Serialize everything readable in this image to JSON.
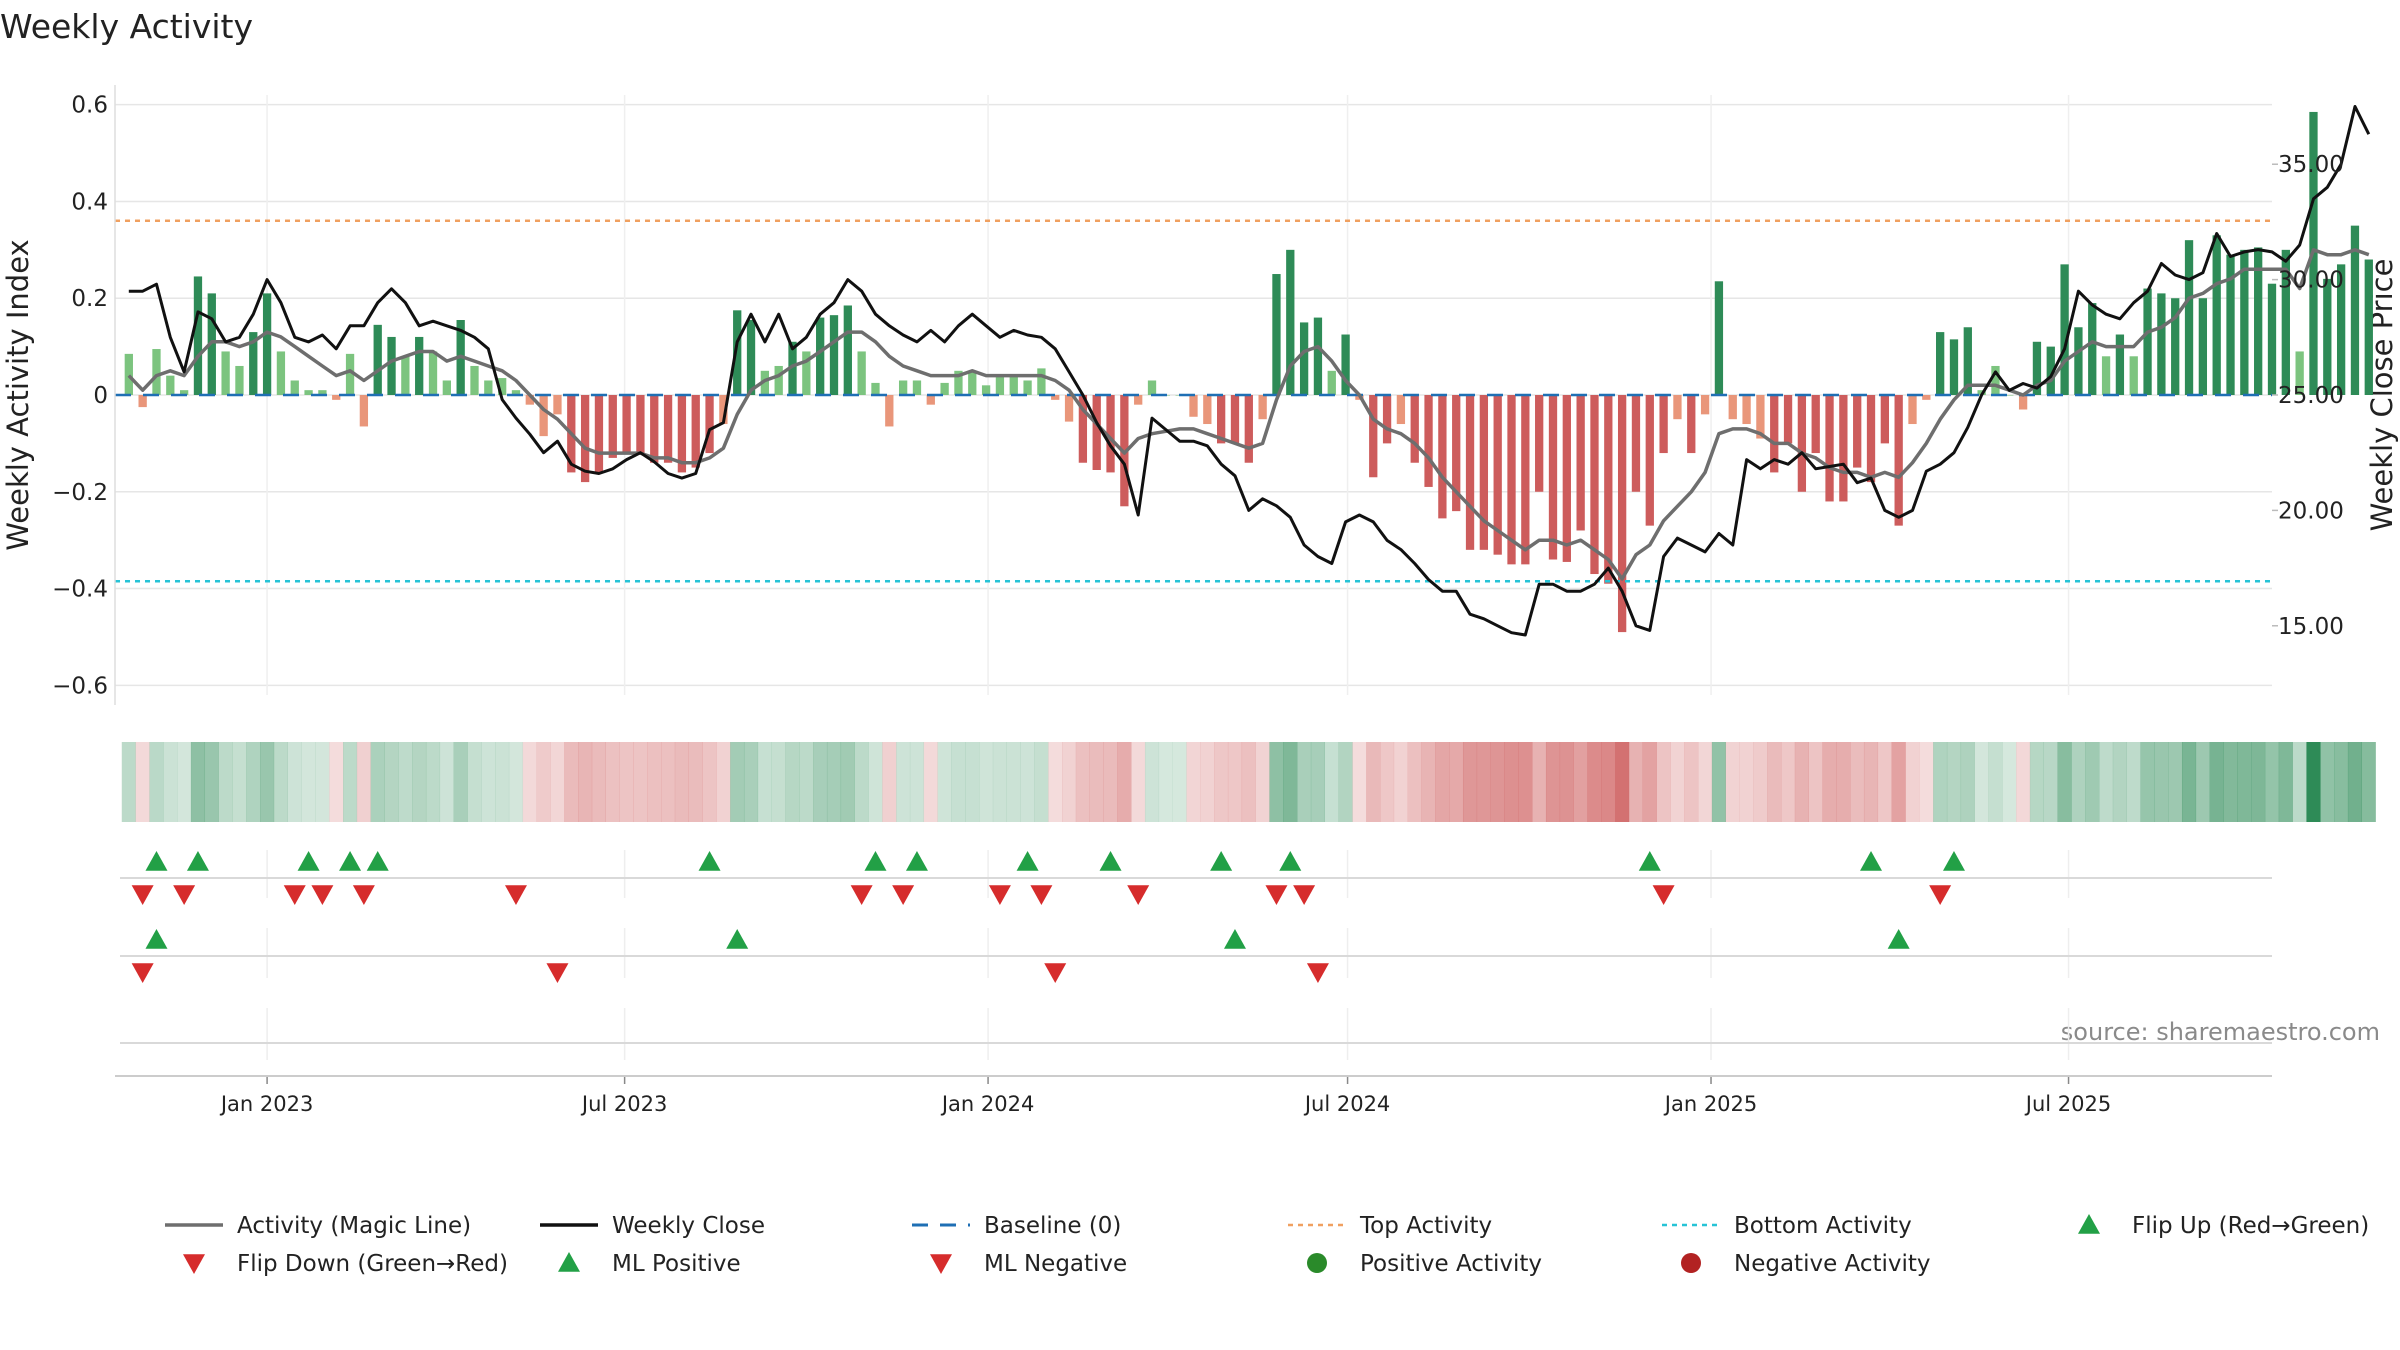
{
  "chart_data": {
    "type": "bar",
    "title": "Weekly Activity",
    "ylabel": "Weekly Activity Index",
    "y2label": "Weekly Close Price",
    "ylim": [
      -0.62,
      0.62
    ],
    "y2lim": [
      12.0,
      38.0
    ],
    "y_ticks": [
      0.6,
      0.4,
      0.2,
      0,
      -0.2,
      -0.4,
      -0.6
    ],
    "y_tick_labels": [
      "0.6",
      "0.4",
      "0.2",
      "0",
      "−0.2",
      "−0.4",
      "−0.6"
    ],
    "y2_ticks": [
      35,
      30,
      25,
      20,
      15
    ],
    "y2_tick_labels": [
      "35.00",
      "30.00",
      "25.00",
      "20.00",
      "15.00"
    ],
    "x_range": [
      "2022-10-16",
      "2025-10-12"
    ],
    "x_ticks": [
      {
        "date": "2023-01-01",
        "label": "Jan 2023"
      },
      {
        "date": "2023-07-01",
        "label": "Jul 2023"
      },
      {
        "date": "2024-01-01",
        "label": "Jan 2024"
      },
      {
        "date": "2024-07-01",
        "label": "Jul 2024"
      },
      {
        "date": "2025-01-01",
        "label": "Jan 2025"
      },
      {
        "date": "2025-07-01",
        "label": "Jul 2025"
      }
    ],
    "start_week": "2022-10-23",
    "week_days": 7,
    "top_activity": 0.36,
    "bottom_activity": -0.385,
    "activity": [
      0.085,
      -0.025,
      0.095,
      0.04,
      0.01,
      0.245,
      0.21,
      0.09,
      0.06,
      0.13,
      0.21,
      0.09,
      0.03,
      0.01,
      0.01,
      -0.01,
      0.085,
      -0.065,
      0.145,
      0.12,
      0.08,
      0.12,
      0.09,
      0.03,
      0.155,
      0.06,
      0.03,
      0.035,
      0.01,
      -0.02,
      -0.085,
      -0.04,
      -0.16,
      -0.18,
      -0.16,
      -0.13,
      -0.12,
      -0.12,
      -0.14,
      -0.14,
      -0.16,
      -0.15,
      -0.12,
      -0.06,
      0.175,
      0.155,
      0.05,
      0.06,
      0.11,
      0.09,
      0.16,
      0.165,
      0.185,
      0.09,
      0.025,
      -0.065,
      0.03,
      0.03,
      -0.02,
      0.025,
      0.05,
      0.05,
      0.02,
      0.04,
      0.04,
      0.03,
      0.055,
      -0.01,
      -0.055,
      -0.14,
      -0.155,
      -0.16,
      -0.23,
      -0.02,
      0.03,
      0.0,
      0.0,
      -0.045,
      -0.06,
      -0.1,
      -0.1,
      -0.14,
      -0.05,
      0.25,
      0.3,
      0.15,
      0.16,
      0.05,
      0.125,
      -0.01,
      -0.17,
      -0.1,
      -0.06,
      -0.14,
      -0.19,
      -0.255,
      -0.24,
      -0.32,
      -0.32,
      -0.33,
      -0.35,
      -0.35,
      -0.2,
      -0.34,
      -0.345,
      -0.28,
      -0.37,
      -0.39,
      -0.49,
      -0.2,
      -0.27,
      -0.12,
      -0.05,
      -0.12,
      -0.04,
      0.235,
      -0.05,
      -0.06,
      -0.09,
      -0.16,
      -0.1,
      -0.2,
      -0.12,
      -0.22,
      -0.22,
      -0.15,
      -0.18,
      -0.1,
      -0.27,
      -0.06,
      -0.01,
      0.13,
      0.115,
      0.14,
      0.01,
      0.06,
      0.0,
      -0.03,
      0.11,
      0.1,
      0.27,
      0.14,
      0.19,
      0.08,
      0.125,
      0.08,
      0.22,
      0.21,
      0.2,
      0.32,
      0.2,
      0.33,
      0.29,
      0.3,
      0.305,
      0.23,
      0.3,
      0.09,
      0.585,
      0.24,
      0.27,
      0.35,
      0.28
    ],
    "magic_line": [
      0.04,
      0.01,
      0.04,
      0.05,
      0.04,
      0.08,
      0.11,
      0.11,
      0.1,
      0.11,
      0.13,
      0.12,
      0.1,
      0.08,
      0.06,
      0.04,
      0.05,
      0.03,
      0.05,
      0.07,
      0.08,
      0.09,
      0.09,
      0.07,
      0.08,
      0.07,
      0.06,
      0.05,
      0.03,
      0.0,
      -0.03,
      -0.05,
      -0.08,
      -0.11,
      -0.12,
      -0.12,
      -0.12,
      -0.12,
      -0.13,
      -0.13,
      -0.14,
      -0.14,
      -0.13,
      -0.11,
      -0.04,
      0.01,
      0.03,
      0.04,
      0.06,
      0.07,
      0.09,
      0.11,
      0.13,
      0.13,
      0.11,
      0.08,
      0.06,
      0.05,
      0.04,
      0.04,
      0.04,
      0.05,
      0.04,
      0.04,
      0.04,
      0.04,
      0.04,
      0.03,
      0.01,
      -0.03,
      -0.06,
      -0.09,
      -0.12,
      -0.09,
      -0.08,
      -0.075,
      -0.07,
      -0.07,
      -0.08,
      -0.09,
      -0.1,
      -0.11,
      -0.1,
      -0.01,
      0.06,
      0.09,
      0.1,
      0.07,
      0.03,
      0.0,
      -0.05,
      -0.07,
      -0.08,
      -0.1,
      -0.13,
      -0.17,
      -0.2,
      -0.23,
      -0.26,
      -0.28,
      -0.3,
      -0.32,
      -0.3,
      -0.3,
      -0.31,
      -0.3,
      -0.32,
      -0.34,
      -0.38,
      -0.33,
      -0.31,
      -0.26,
      -0.23,
      -0.2,
      -0.16,
      -0.08,
      -0.07,
      -0.07,
      -0.08,
      -0.1,
      -0.1,
      -0.12,
      -0.13,
      -0.15,
      -0.16,
      -0.16,
      -0.17,
      -0.16,
      -0.17,
      -0.14,
      -0.1,
      -0.05,
      -0.01,
      0.02,
      0.02,
      0.02,
      0.01,
      0.0,
      0.02,
      0.03,
      0.07,
      0.09,
      0.11,
      0.1,
      0.1,
      0.1,
      0.13,
      0.14,
      0.16,
      0.2,
      0.21,
      0.23,
      0.24,
      0.26,
      0.26,
      0.26,
      0.26,
      0.22,
      0.3,
      0.29,
      0.29,
      0.3,
      0.29
    ],
    "close": [
      29.5,
      29.5,
      29.8,
      27.5,
      26.0,
      28.6,
      28.3,
      27.3,
      27.5,
      28.5,
      30.0,
      29.0,
      27.5,
      27.3,
      27.6,
      27.0,
      28.0,
      28.0,
      29.0,
      29.6,
      29.0,
      28.0,
      28.2,
      28.0,
      27.8,
      27.5,
      27.0,
      24.8,
      24.0,
      23.3,
      22.5,
      23.0,
      22.0,
      21.7,
      21.6,
      21.8,
      22.2,
      22.5,
      22.1,
      21.6,
      21.4,
      21.6,
      23.5,
      23.8,
      27.3,
      28.5,
      27.3,
      28.5,
      27.0,
      27.5,
      28.5,
      29.0,
      30.0,
      29.5,
      28.5,
      28.0,
      27.6,
      27.3,
      27.8,
      27.3,
      28.0,
      28.5,
      28.0,
      27.5,
      27.8,
      27.6,
      27.5,
      27.0,
      26.0,
      25.0,
      23.8,
      22.8,
      22.0,
      19.8,
      24.0,
      23.5,
      23.0,
      23.0,
      22.8,
      22.0,
      21.5,
      20.0,
      20.5,
      20.2,
      19.7,
      18.5,
      18.0,
      17.7,
      19.5,
      19.8,
      19.5,
      18.7,
      18.3,
      17.7,
      17.0,
      16.5,
      16.5,
      15.5,
      15.3,
      15.0,
      14.7,
      14.6,
      16.8,
      16.8,
      16.5,
      16.5,
      16.8,
      17.5,
      16.5,
      15.0,
      14.8,
      18.0,
      18.8,
      18.5,
      18.2,
      19.0,
      18.5,
      22.2,
      21.8,
      22.2,
      22.0,
      22.5,
      21.8,
      21.9,
      22.0,
      21.2,
      21.4,
      20.0,
      19.7,
      20.0,
      21.7,
      22.0,
      22.5,
      23.6,
      25.0,
      26.0,
      25.2,
      25.5,
      25.3,
      25.8,
      27.0,
      29.5,
      28.9,
      28.5,
      28.3,
      29.0,
      29.5,
      30.7,
      30.2,
      30.0,
      30.3,
      32.0,
      31.0,
      31.2,
      31.3,
      31.2,
      30.8,
      31.5,
      33.5,
      34.0,
      35.0,
      37.5,
      36.3
    ],
    "flips_up": [
      2,
      5,
      13,
      16,
      18,
      42,
      54,
      57,
      65,
      71,
      79,
      84,
      110,
      126,
      132
    ],
    "flips_down": [
      1,
      4,
      12,
      14,
      17,
      28,
      53,
      56,
      63,
      66,
      73,
      83,
      85,
      111,
      131
    ],
    "ml_positive": [
      2,
      44,
      80,
      128
    ],
    "ml_negative": [
      1,
      31,
      67,
      86
    ],
    "legend": [
      {
        "label": "Activity (Magic Line)",
        "kind": "line",
        "color": "#6e6e6e"
      },
      {
        "label": "Weekly Close",
        "kind": "line",
        "color": "#111111"
      },
      {
        "label": "Baseline (0)",
        "kind": "dash",
        "color": "#1f6fb4"
      },
      {
        "label": "Top Activity",
        "kind": "dot",
        "color": "#f0a060"
      },
      {
        "label": "Bottom Activity",
        "kind": "dot",
        "color": "#26c3d6"
      },
      {
        "label": "Flip Up (Red→Green)",
        "kind": "triangle-up",
        "color": "#22a046"
      },
      {
        "label": "Flip Down (Green→Red)",
        "kind": "triangle-down",
        "color": "#d62c2c"
      },
      {
        "label": "ML Positive",
        "kind": "triangle-up",
        "color": "#22a046"
      },
      {
        "label": "ML Negative",
        "kind": "triangle-down",
        "color": "#d62c2c"
      },
      {
        "label": "Positive Activity",
        "kind": "circle",
        "color": "#2a8a2a"
      },
      {
        "label": "Negative Activity",
        "kind": "circle",
        "color": "#b22222"
      }
    ],
    "source": "source: sharemaestro.com"
  },
  "colors": {
    "pos_strong": "#2e8b57",
    "pos_light": "#7cc47f",
    "neg_strong": "#cd5c5c",
    "neg_light": "#e9967a",
    "magic_line": "#6e6e6e",
    "close_line": "#111111",
    "baseline": "#1f6fb4",
    "top": "#f0a060",
    "bottom": "#26c3d6",
    "flip_up": "#22a046",
    "flip_down": "#d62c2c",
    "grid": "#e6e6e6"
  }
}
